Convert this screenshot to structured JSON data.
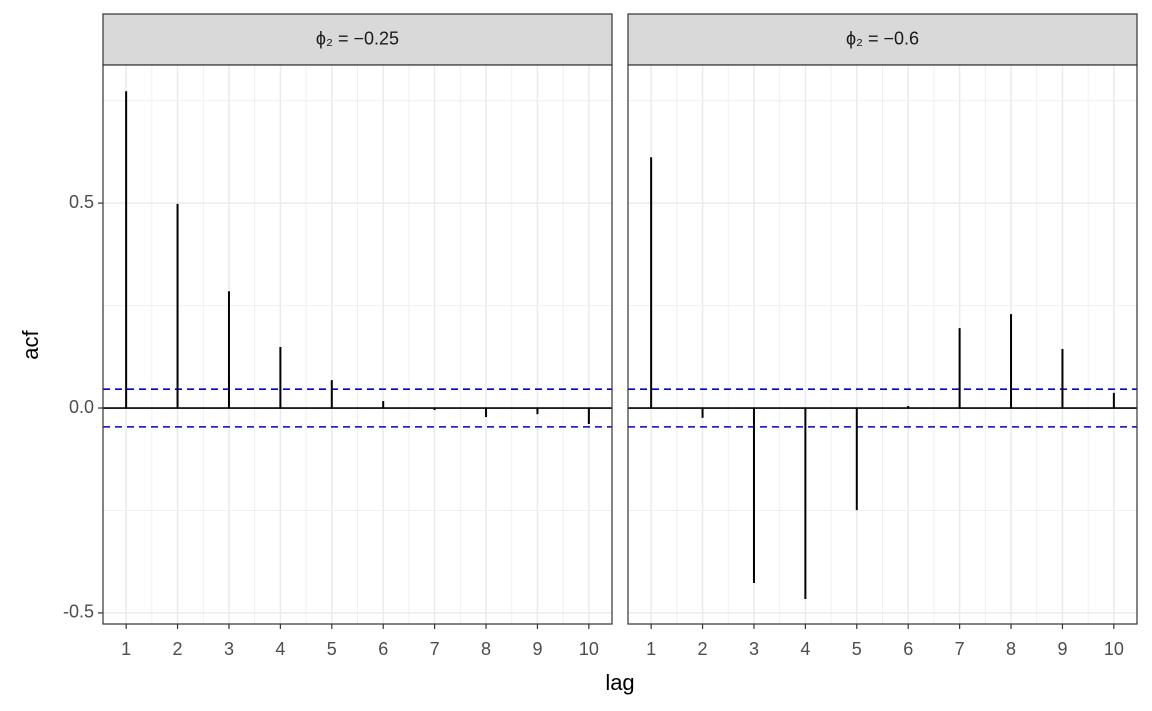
{
  "xlabel": "lag",
  "ylabel": "acf",
  "chart_data": [
    {
      "type": "needle",
      "title": "ϕ₂ = −0.25",
      "x": [
        1,
        2,
        3,
        4,
        5,
        6,
        7,
        8,
        9,
        10
      ],
      "values": [
        0.773,
        0.498,
        0.285,
        0.149,
        0.068,
        0.017,
        -0.005,
        -0.022,
        -0.015,
        -0.039
      ],
      "color": "#000000",
      "xlim": [
        0.55,
        10.45
      ],
      "xticks": [
        1,
        2,
        3,
        4,
        5,
        6,
        7,
        8,
        9,
        10
      ],
      "ylim": [
        -0.527,
        0.837
      ],
      "yticks": [
        -0.5,
        {
          "value": 0,
          "label": "0.0"
        },
        0.5
      ],
      "y_tick_labels": true,
      "grid": true,
      "hlines": [
        {
          "value": 0,
          "color": "#000000",
          "dashed": false
        },
        {
          "value": 0.046,
          "color": "#0000cc",
          "dashed": true
        },
        {
          "value": -0.046,
          "color": "#0000cc",
          "dashed": true
        }
      ]
    },
    {
      "type": "needle",
      "title": "ϕ₂ = −0.6",
      "x": [
        1,
        2,
        3,
        4,
        5,
        6,
        7,
        8,
        9,
        10
      ],
      "values": [
        0.612,
        -0.024,
        -0.427,
        -0.466,
        -0.249,
        0.005,
        0.195,
        0.229,
        0.144,
        0.037
      ],
      "color": "#000000",
      "xlim": [
        0.55,
        10.45
      ],
      "xticks": [
        1,
        2,
        3,
        4,
        5,
        6,
        7,
        8,
        9,
        10
      ],
      "ylim": [
        -0.527,
        0.837
      ],
      "yticks": [
        -0.5,
        {
          "value": 0,
          "label": "0.0"
        },
        0.5
      ],
      "y_tick_labels": false,
      "grid": true,
      "hlines": [
        {
          "value": 0,
          "color": "#000000",
          "dashed": false
        },
        {
          "value": 0.046,
          "color": "#0000cc",
          "dashed": true
        },
        {
          "value": -0.046,
          "color": "#0000cc",
          "dashed": true
        }
      ]
    }
  ]
}
